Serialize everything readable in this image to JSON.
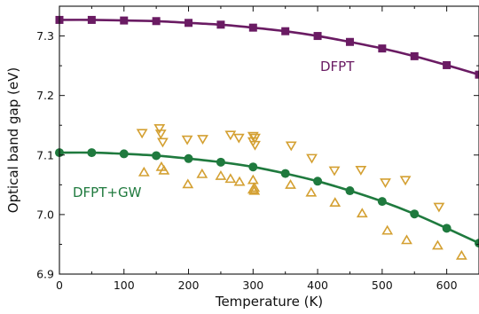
{
  "chart_data": {
    "type": "scatter",
    "xlabel": "Temperature (K)",
    "ylabel": "Optical band gap (eV)",
    "xlim": [
      0,
      650
    ],
    "ylim": [
      6.9,
      7.35
    ],
    "xticks": [
      "0",
      "100",
      "200",
      "300",
      "400",
      "500",
      "600"
    ],
    "yticks": [
      "6.9",
      "7.0",
      "7.1",
      "7.2",
      "7.3"
    ],
    "colors": {
      "dfpt": "#6a1b63",
      "gw": "#1f7a3e",
      "exp": "#d4a032"
    },
    "series": [
      {
        "name": "DFPT",
        "marker": "square",
        "line": "smooth",
        "x": [
          0,
          50,
          100,
          150,
          200,
          250,
          300,
          350,
          400,
          450,
          500,
          550,
          600,
          650
        ],
        "y": [
          7.327,
          7.327,
          7.326,
          7.325,
          7.322,
          7.319,
          7.314,
          7.308,
          7.3,
          7.29,
          7.279,
          7.266,
          7.251,
          7.235
        ]
      },
      {
        "name": "DFPT+GW",
        "marker": "circle",
        "line": "smooth",
        "x": [
          0,
          50,
          100,
          150,
          200,
          250,
          300,
          350,
          400,
          450,
          500,
          550,
          600,
          650
        ],
        "y": [
          7.104,
          7.104,
          7.102,
          7.099,
          7.094,
          7.088,
          7.08,
          7.069,
          7.056,
          7.04,
          7.022,
          7.001,
          6.977,
          6.952
        ]
      },
      {
        "marker": "triangle-down",
        "x": [
          128,
          155,
          157,
          160,
          198,
          222,
          265,
          278,
          300,
          300,
          303,
          303,
          359,
          391,
          426,
          467,
          505,
          536,
          588
        ],
        "y": [
          7.137,
          7.145,
          7.136,
          7.122,
          7.126,
          7.127,
          7.134,
          7.129,
          7.132,
          7.123,
          7.129,
          7.117,
          7.116,
          7.095,
          7.074,
          7.075,
          7.054,
          7.058,
          7.013
        ]
      },
      {
        "marker": "triangle-up",
        "x": [
          131,
          158,
          162,
          199,
          221,
          250,
          265,
          279,
          300,
          300,
          302,
          302,
          358,
          390,
          427,
          469,
          508,
          538,
          586,
          623
        ],
        "y": [
          7.071,
          7.08,
          7.074,
          7.051,
          7.068,
          7.065,
          7.06,
          7.055,
          7.058,
          7.042,
          7.045,
          7.04,
          7.05,
          7.037,
          7.02,
          7.002,
          6.973,
          6.957,
          6.948,
          6.931
        ]
      }
    ],
    "annotations": [
      {
        "text": "DFPT",
        "series": "DFPT"
      },
      {
        "text": "DFPT+GW",
        "series": "DFPT+GW"
      }
    ]
  }
}
